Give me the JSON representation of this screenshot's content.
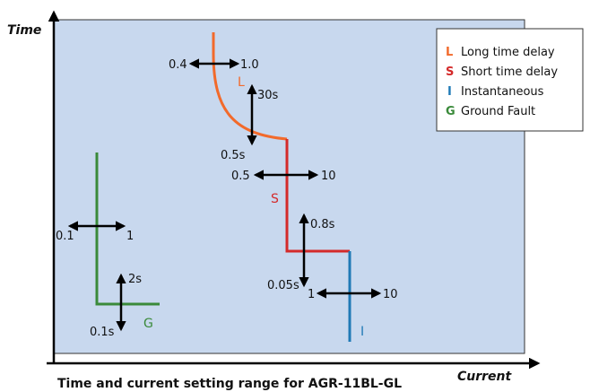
{
  "axes": {
    "y_label": "Time",
    "x_label": "Current"
  },
  "caption": "Time and current setting range for AGR-11BL-GL",
  "colors": {
    "background": "#c8d8ee",
    "long_time": "#f26a2b",
    "short_time": "#d42a2a",
    "instantaneous": "#1f7ab6",
    "ground_fault": "#3a8a3a"
  },
  "legend": [
    {
      "key": "L",
      "label": "Long time delay",
      "color": "#f26a2b"
    },
    {
      "key": "S",
      "label": "Short time delay",
      "color": "#d42a2a"
    },
    {
      "key": "I",
      "label": "Instantaneous",
      "color": "#1f7ab6"
    },
    {
      "key": "G",
      "label": "Ground Fault",
      "color": "#3a8a3a"
    }
  ],
  "curves": {
    "long_time": {
      "letter": "L",
      "current_min": "0.4",
      "current_max": "1.0",
      "time_max": "30s",
      "time_min": "0.5s"
    },
    "short_time": {
      "letter": "S",
      "current_min": "0.5",
      "current_max": "10",
      "time_max": "0.8s",
      "time_min": "0.05s"
    },
    "instantaneous": {
      "letter": "I",
      "current_min": "1",
      "current_max": "10"
    },
    "ground_fault": {
      "letter": "G",
      "current_min": "0.1",
      "current_max": "1",
      "time_max": "2s",
      "time_min": "0.1s"
    }
  }
}
